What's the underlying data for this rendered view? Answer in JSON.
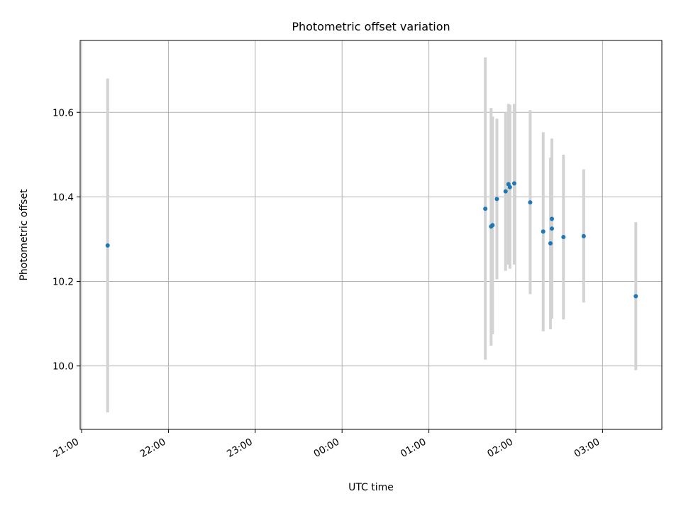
{
  "chart_data": {
    "type": "scatter",
    "title": "Photometric offset variation",
    "xlabel": "UTC time",
    "ylabel": "Photometric offset",
    "x_unit": "UTC time (HH:MM, night spanning midnight)",
    "xlim": [
      "20:59",
      "03:41"
    ],
    "ylim": [
      9.85,
      10.77
    ],
    "x_ticks": [
      "21:00",
      "22:00",
      "23:00",
      "00:00",
      "01:00",
      "02:00",
      "03:00"
    ],
    "y_ticks": [
      "10.0",
      "10.2",
      "10.4",
      "10.6"
    ],
    "y_tick_values": [
      10.0,
      10.2,
      10.4,
      10.6
    ],
    "grid": true,
    "legend": false,
    "errorbar_color": "#d3d3d3",
    "marker_color": "#1f77b4",
    "series": [
      {
        "points": [
          {
            "x": "21:18",
            "y": 10.285,
            "ylo": 9.89,
            "yhi": 10.68
          },
          {
            "x": "01:39",
            "y": 10.372,
            "ylo": 10.015,
            "yhi": 10.73
          },
          {
            "x": "01:43",
            "y": 10.33,
            "ylo": 10.048,
            "yhi": 10.61
          },
          {
            "x": "01:44",
            "y": 10.333,
            "ylo": 10.075,
            "yhi": 10.59
          },
          {
            "x": "01:47",
            "y": 10.395,
            "ylo": 10.205,
            "yhi": 10.585
          },
          {
            "x": "01:53",
            "y": 10.413,
            "ylo": 10.225,
            "yhi": 10.6
          },
          {
            "x": "01:55",
            "y": 10.43,
            "ylo": 10.24,
            "yhi": 10.62
          },
          {
            "x": "01:56",
            "y": 10.423,
            "ylo": 10.23,
            "yhi": 10.618
          },
          {
            "x": "01:59",
            "y": 10.432,
            "ylo": 10.24,
            "yhi": 10.62
          },
          {
            "x": "02:10",
            "y": 10.387,
            "ylo": 10.17,
            "yhi": 10.605
          },
          {
            "x": "02:19",
            "y": 10.318,
            "ylo": 10.082,
            "yhi": 10.553
          },
          {
            "x": "02:24",
            "y": 10.29,
            "ylo": 10.087,
            "yhi": 10.493
          },
          {
            "x": "02:25",
            "y": 10.325,
            "ylo": 10.112,
            "yhi": 10.538
          },
          {
            "x": "02:25",
            "y": 10.348,
            "ylo": 10.135,
            "yhi": 10.53
          },
          {
            "x": "02:33",
            "y": 10.305,
            "ylo": 10.11,
            "yhi": 10.5
          },
          {
            "x": "02:47",
            "y": 10.307,
            "ylo": 10.15,
            "yhi": 10.465
          },
          {
            "x": "03:23",
            "y": 10.165,
            "ylo": 9.99,
            "yhi": 10.34
          }
        ]
      }
    ]
  }
}
